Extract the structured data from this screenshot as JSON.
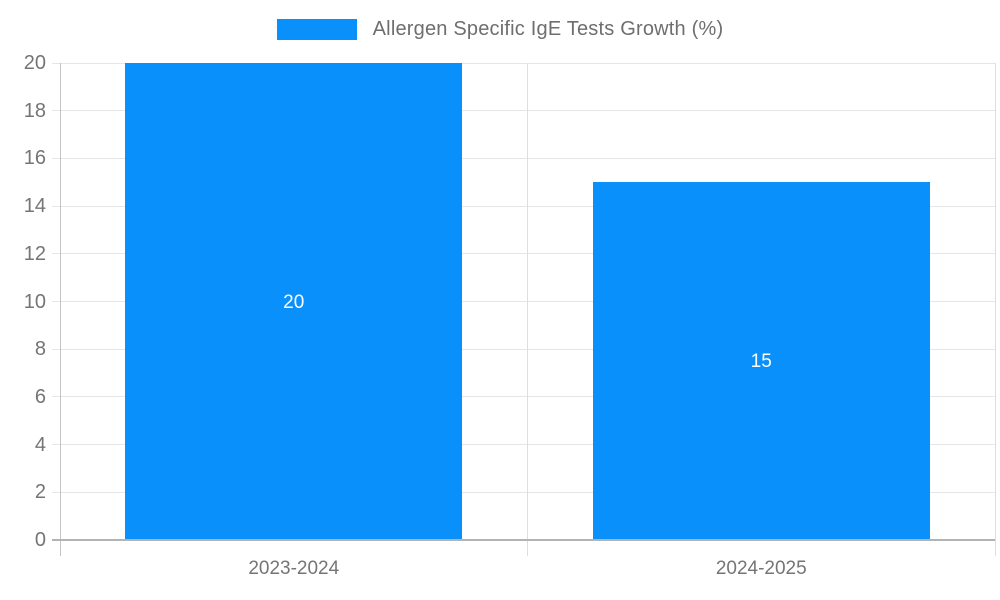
{
  "chart_data": {
    "type": "bar",
    "categories": [
      "2023-2024",
      "2024-2025"
    ],
    "values": [
      20,
      15
    ],
    "value_labels": [
      "20",
      "15"
    ],
    "series_name": "Allergen Specific IgE Tests Growth (%)",
    "title": "",
    "xlabel": "",
    "ylabel": "",
    "ylim": [
      0,
      20
    ],
    "yticks": [
      0,
      2,
      4,
      6,
      8,
      10,
      12,
      14,
      16,
      18,
      20
    ],
    "grid": true,
    "legend_position": "top",
    "colors": {
      "bar": "#0990fb",
      "value_label": "#ffffff",
      "axis_text": "#757575",
      "gridline": "#e6e6e6",
      "vertical_gridline": "#dedede",
      "y_axis_line": "#c4c4c4",
      "baseline": "#b3b3b3",
      "legend_text": "#6e6e6e"
    }
  },
  "legend": {
    "label": "Allergen Specific IgE Tests Growth (%)"
  }
}
